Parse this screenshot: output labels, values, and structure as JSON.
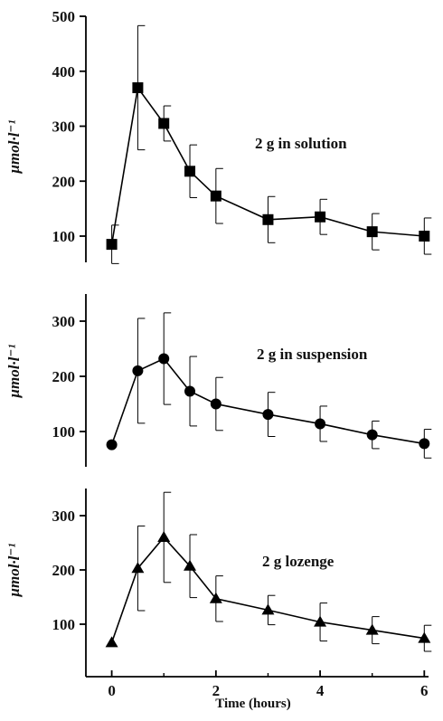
{
  "figure": {
    "x_title": "Time (hours)",
    "x_ticks": [
      0,
      2,
      4,
      6
    ]
  },
  "chart_data": [
    {
      "type": "line",
      "panel": "top",
      "annotation": "2 g in solution",
      "ylabel": "μmol·l⁻¹",
      "xlabel": "",
      "ylim": [
        45,
        500
      ],
      "xlim": [
        -0.4,
        6.1
      ],
      "y_ticks": [
        100,
        200,
        300,
        400,
        500
      ],
      "marker": "square",
      "color": "#000000",
      "series": [
        {
          "x": [
            0,
            0.5,
            1,
            1.5,
            2,
            3,
            4,
            5,
            6
          ],
          "values": [
            85,
            370,
            305,
            218,
            173,
            130,
            135,
            108,
            100
          ],
          "error": [
            35,
            113,
            32,
            48,
            50,
            42,
            32,
            33,
            33
          ]
        }
      ]
    },
    {
      "type": "line",
      "panel": "middle",
      "annotation": "2 g in suspension",
      "ylabel": "μmol·l⁻¹",
      "xlabel": "",
      "ylim": [
        45,
        350
      ],
      "xlim": [
        -0.4,
        6.1
      ],
      "y_ticks": [
        100,
        200,
        300
      ],
      "marker": "circle",
      "color": "#000000",
      "series": [
        {
          "x": [
            0,
            0.5,
            1,
            1.5,
            2,
            3,
            4,
            5,
            6
          ],
          "values": [
            76,
            210,
            232,
            173,
            150,
            131,
            114,
            94,
            78
          ],
          "error": [
            0,
            95,
            83,
            63,
            48,
            40,
            32,
            25,
            26
          ]
        }
      ]
    },
    {
      "type": "line",
      "panel": "bottom",
      "annotation": "2 g lozenge",
      "ylabel": "μmol·l⁻¹",
      "xlabel": "Time (hours)",
      "ylim": [
        45,
        355
      ],
      "xlim": [
        -0.4,
        6.1
      ],
      "y_ticks": [
        100,
        200,
        300
      ],
      "marker": "triangle",
      "color": "#000000",
      "series": [
        {
          "x": [
            0,
            0.5,
            1,
            1.5,
            2,
            3,
            4,
            5,
            6
          ],
          "values": [
            66,
            203,
            260,
            207,
            147,
            126,
            104,
            89,
            74
          ],
          "error": [
            0,
            78,
            83,
            58,
            42,
            27,
            35,
            25,
            24
          ]
        }
      ]
    }
  ]
}
